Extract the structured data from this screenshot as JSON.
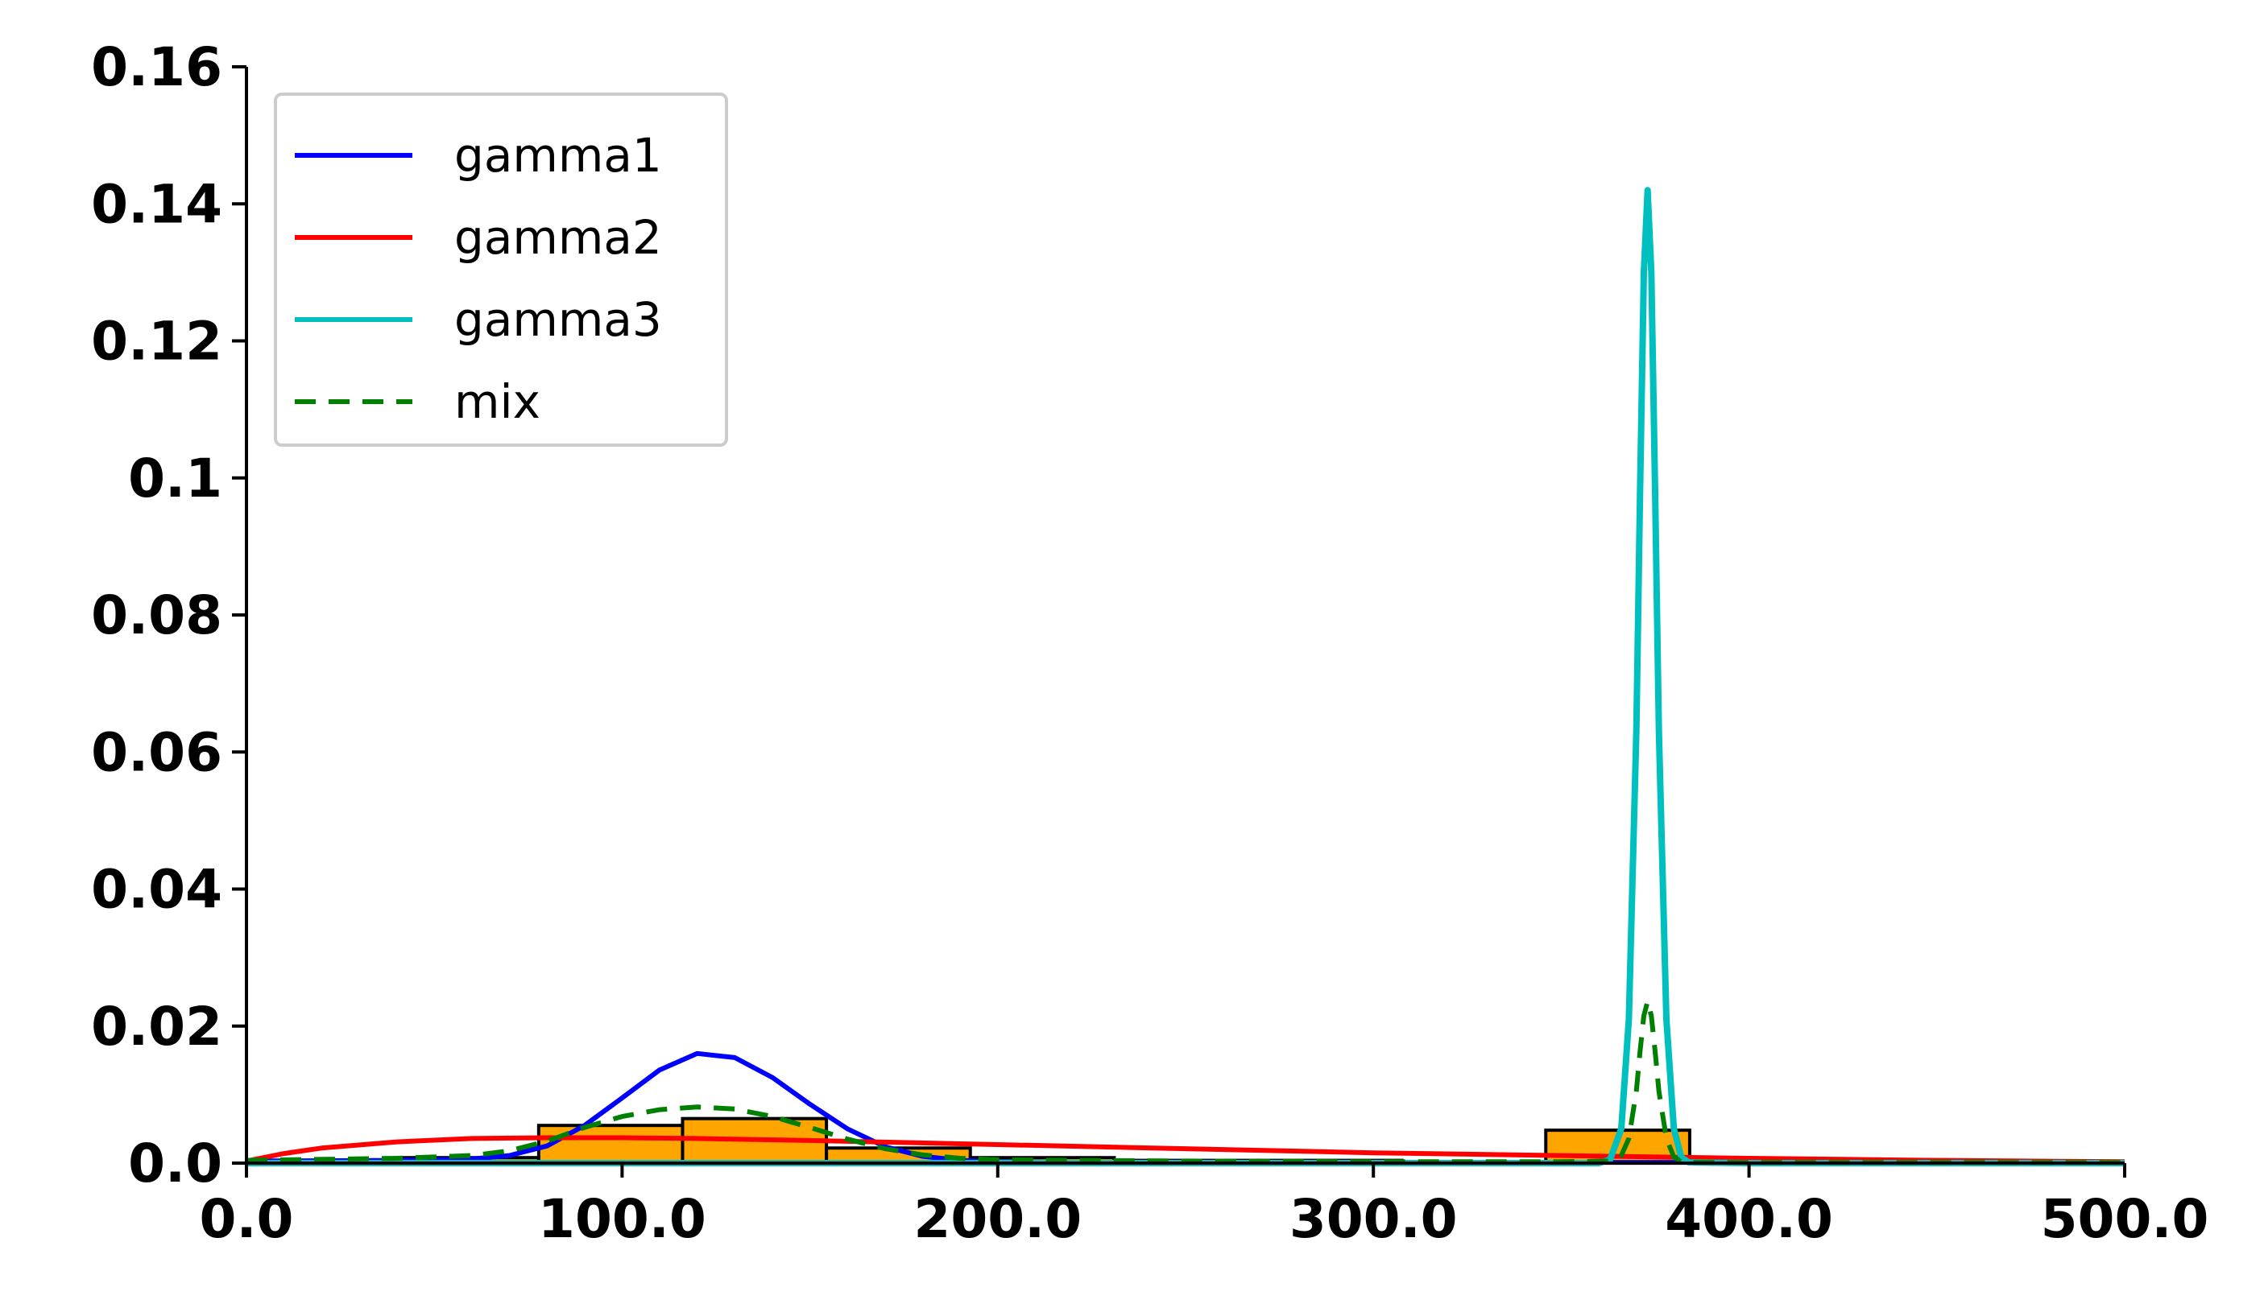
{
  "chart_data": {
    "type": "line",
    "title": "",
    "xlabel": "",
    "ylabel": "",
    "xlim": [
      0,
      500
    ],
    "ylim": [
      0,
      0.16
    ],
    "x_ticks": [
      "0.0",
      "100.0",
      "200.0",
      "300.0",
      "400.0",
      "500.0"
    ],
    "x_tick_values": [
      0,
      100,
      200,
      300,
      400,
      500
    ],
    "y_ticks": [
      "0.0",
      "0.02",
      "0.04",
      "0.06",
      "0.08",
      "0.1",
      "0.12",
      "0.14",
      "0.16"
    ],
    "y_tick_values": [
      0,
      0.02,
      0.04,
      0.06,
      0.08,
      0.1,
      0.12,
      0.14,
      0.16
    ],
    "grid": false,
    "legend_position": "top-left",
    "histogram": {
      "color": "#ffa500",
      "edge_color": "#000000",
      "bins": [
        {
          "x0": 39.5,
          "x1": 77.8,
          "value": 0.0008
        },
        {
          "x0": 77.8,
          "x1": 116.1,
          "value": 0.0055
        },
        {
          "x0": 116.1,
          "x1": 154.4,
          "value": 0.0065
        },
        {
          "x0": 154.4,
          "x1": 192.7,
          "value": 0.0022
        },
        {
          "x0": 192.7,
          "x1": 231.0,
          "value": 0.0008
        },
        {
          "x0": 231.0,
          "x1": 269.3,
          "value": 0.0004
        },
        {
          "x0": 269.3,
          "x1": 307.6,
          "value": 0.0004
        },
        {
          "x0": 307.6,
          "x1": 345.9,
          "value": 0.0002
        },
        {
          "x0": 345.9,
          "x1": 384.2,
          "value": 0.0048
        }
      ]
    },
    "series": [
      {
        "name": "gamma1",
        "color": "#0000ff",
        "dash": "",
        "x": [
          0,
          40,
          60,
          70,
          80,
          90,
          100,
          110,
          120,
          130,
          140,
          150,
          160,
          170,
          180,
          190,
          200,
          220,
          250,
          300,
          350,
          400,
          450,
          500
        ],
        "y": [
          0.0003,
          0.0004,
          0.0006,
          0.0011,
          0.0025,
          0.0055,
          0.0095,
          0.0136,
          0.016,
          0.0154,
          0.0125,
          0.0086,
          0.005,
          0.0024,
          0.001,
          0.0004,
          0.0002,
          0.0001,
          0.0001,
          0.0001,
          0.0001,
          0.0001,
          0.0001,
          0.0001
        ]
      },
      {
        "name": "gamma2",
        "color": "#ff0000",
        "dash": "",
        "x": [
          0,
          10,
          20,
          40,
          60,
          80,
          100,
          120,
          150,
          200,
          250,
          300,
          350,
          400,
          450,
          500
        ],
        "y": [
          0.0003,
          0.0014,
          0.0022,
          0.0031,
          0.0036,
          0.0037,
          0.0037,
          0.0036,
          0.0033,
          0.0027,
          0.0021,
          0.0015,
          0.0011,
          0.0007,
          0.0004,
          0.0002
        ]
      },
      {
        "name": "gamma3",
        "color": "#00bfbf",
        "dash": "",
        "x": [
          0,
          360,
          363,
          366,
          368,
          370,
          371,
          372,
          373,
          374,
          375,
          376,
          378,
          380,
          382,
          384,
          400,
          500
        ],
        "y": [
          0,
          0,
          0.0005,
          0.005,
          0.021,
          0.063,
          0.098,
          0.13,
          0.142,
          0.13,
          0.098,
          0.063,
          0.021,
          0.005,
          0.0008,
          0.0001,
          0,
          0
        ],
        "line_width": 8
      },
      {
        "name": "mix",
        "color": "#008000",
        "dash": "26,16",
        "x": [
          0,
          40,
          60,
          70,
          80,
          90,
          100,
          110,
          120,
          130,
          140,
          150,
          160,
          170,
          180,
          190,
          200,
          220,
          250,
          300,
          350,
          363,
          366,
          368,
          370,
          371,
          372,
          373,
          374,
          375,
          376,
          378,
          380,
          382,
          384,
          400,
          450,
          500
        ],
        "y": [
          0.0004,
          0.0007,
          0.0011,
          0.0018,
          0.0032,
          0.0052,
          0.0068,
          0.0078,
          0.0082,
          0.0079,
          0.0068,
          0.0052,
          0.0035,
          0.0021,
          0.0012,
          0.0007,
          0.0005,
          0.0004,
          0.0003,
          0.0002,
          0.0002,
          0.0003,
          0.0011,
          0.0036,
          0.0105,
          0.0163,
          0.0215,
          0.0236,
          0.0215,
          0.0163,
          0.0105,
          0.0036,
          0.0009,
          0.0002,
          0.0001,
          0.0001,
          0.0001,
          0.0001
        ],
        "line_width": 6
      }
    ]
  }
}
